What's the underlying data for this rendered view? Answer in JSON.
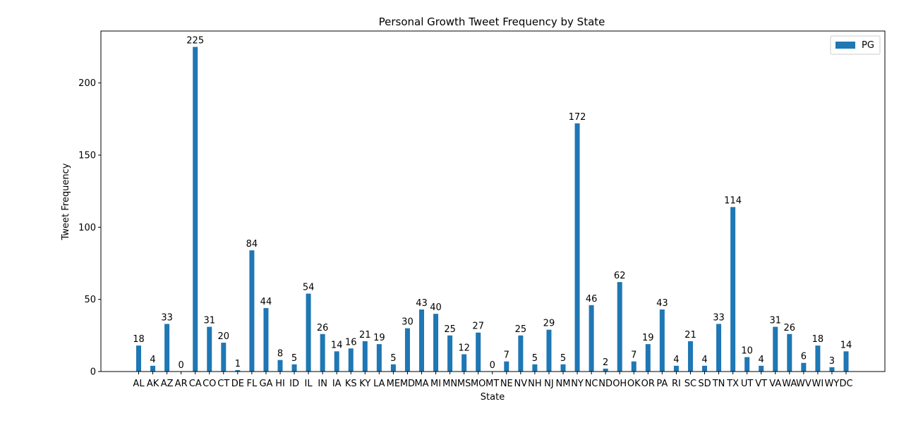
{
  "chart_data": {
    "type": "bar",
    "title": "Personal Growth Tweet Frequency by State",
    "xlabel": "State",
    "ylabel": "Tweet Frequency",
    "ylim": [
      0,
      236
    ],
    "yticks": [
      0,
      50,
      100,
      150,
      200
    ],
    "grid": false,
    "legend_placement": "top-right",
    "bar_color": "#1f77b4",
    "categories": [
      "AL",
      "AK",
      "AZ",
      "AR",
      "CA",
      "CO",
      "CT",
      "DE",
      "FL",
      "GA",
      "HI",
      "ID",
      "IL",
      "IN",
      "IA",
      "KS",
      "KY",
      "LA",
      "ME",
      "MD",
      "MA",
      "MI",
      "MN",
      "MS",
      "MO",
      "MT",
      "NE",
      "NV",
      "NH",
      "NJ",
      "NM",
      "NY",
      "NC",
      "ND",
      "OH",
      "OK",
      "OR",
      "PA",
      "RI",
      "SC",
      "SD",
      "TN",
      "TX",
      "UT",
      "VT",
      "VA",
      "WA",
      "WV",
      "WI",
      "WY",
      "DC"
    ],
    "series": [
      {
        "name": "PG",
        "values": [
          18,
          4,
          33,
          0,
          225,
          31,
          20,
          1,
          84,
          44,
          8,
          5,
          54,
          26,
          14,
          16,
          21,
          19,
          5,
          30,
          43,
          40,
          25,
          12,
          27,
          0,
          7,
          25,
          5,
          29,
          5,
          172,
          46,
          2,
          62,
          7,
          19,
          43,
          4,
          21,
          4,
          33,
          114,
          10,
          4,
          31,
          26,
          6,
          18,
          3,
          14
        ]
      }
    ]
  }
}
